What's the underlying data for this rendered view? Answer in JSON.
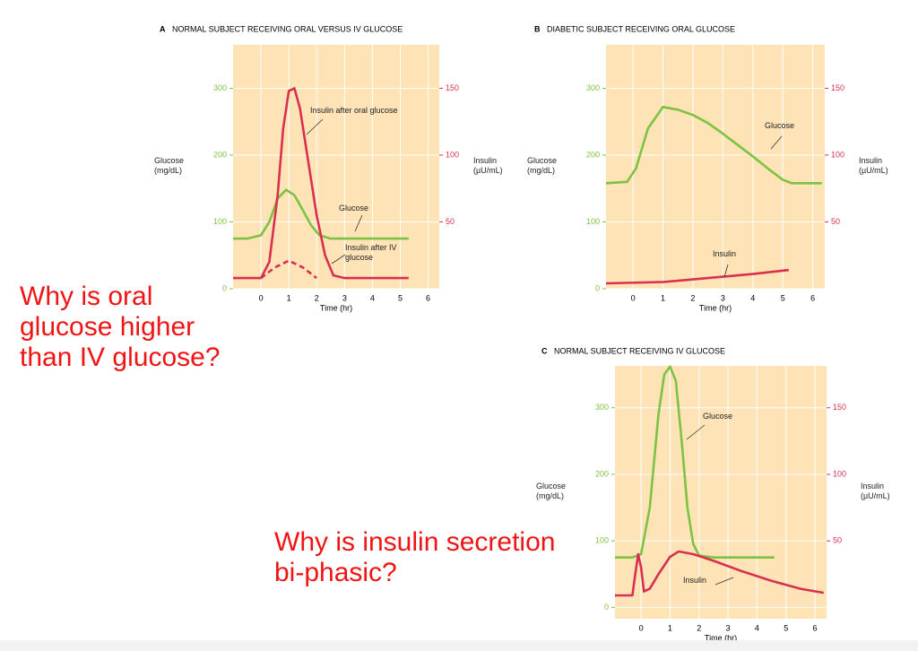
{
  "chart_data": [
    {
      "type": "line",
      "label": "A",
      "title": "NORMAL SUBJECT RECEIVING ORAL VERSUS IV GLUCOSE",
      "xlabel": "Time (hr)",
      "ylabel": "Glucose (mg/dL)",
      "y2label": "Insulin (µU/mL)",
      "xlim": [
        -1,
        6.4
      ],
      "xticks": [
        0,
        1,
        2,
        3,
        4,
        5,
        6
      ],
      "ylim": [
        0,
        365
      ],
      "yticks": [
        0,
        100,
        200,
        300
      ],
      "y2lim": [
        0,
        182.5
      ],
      "y2ticks": [
        50,
        100,
        150
      ],
      "grid": true,
      "series": [
        {
          "name": "Glucose",
          "color": "#7dc242",
          "x": [
            -1,
            -0.5,
            0,
            0.3,
            0.6,
            0.9,
            1.2,
            1.5,
            1.8,
            2.1,
            2.5,
            3,
            4,
            5.3
          ],
          "values": [
            75,
            75,
            80,
            100,
            135,
            148,
            140,
            118,
            95,
            80,
            75,
            75,
            75,
            75
          ]
        },
        {
          "name": "Insulin after oral glucose",
          "color": "#d9304f",
          "axis": "y2",
          "x": [
            -1,
            0,
            0.3,
            0.6,
            0.8,
            1.0,
            1.2,
            1.4,
            1.7,
            2,
            2.3,
            2.6,
            3,
            4,
            5.3
          ],
          "values": [
            8,
            8,
            20,
            70,
            120,
            148,
            150,
            135,
            95,
            55,
            25,
            10,
            8,
            8,
            8
          ]
        },
        {
          "name": "Insulin after IV glucose",
          "color": "#d9304f",
          "axis": "y2",
          "dashed": true,
          "x": [
            0,
            0.5,
            1,
            1.5,
            2
          ],
          "values": [
            8,
            16,
            21,
            16,
            8
          ]
        }
      ]
    },
    {
      "type": "line",
      "label": "B",
      "title": "DIABETIC SUBJECT RECEIVING ORAL GLUCOSE",
      "xlabel": "Time (hr)",
      "ylabel": "Glucose (mg/dL)",
      "y2label": "Insulin (µU/mL)",
      "xlim": [
        -0.9,
        6.4
      ],
      "xticks": [
        0,
        1,
        2,
        3,
        4,
        5,
        6
      ],
      "ylim": [
        0,
        365
      ],
      "yticks": [
        0,
        100,
        200,
        300
      ],
      "y2lim": [
        0,
        182.5
      ],
      "y2ticks": [
        50,
        100,
        150
      ],
      "grid": true,
      "series": [
        {
          "name": "Glucose",
          "color": "#7dc242",
          "x": [
            -0.9,
            -0.2,
            0.1,
            0.5,
            1,
            1.5,
            2,
            2.5,
            3,
            3.5,
            4,
            4.5,
            5,
            5.3,
            6.3
          ],
          "values": [
            158,
            160,
            180,
            240,
            272,
            268,
            260,
            248,
            232,
            215,
            198,
            180,
            163,
            158,
            158
          ]
        },
        {
          "name": "Insulin",
          "color": "#d9304f",
          "axis": "y2",
          "x": [
            -0.9,
            1,
            2,
            3,
            4,
            5.2
          ],
          "values": [
            4,
            5,
            7,
            9,
            11,
            14
          ]
        }
      ]
    },
    {
      "type": "line",
      "label": "C",
      "title": "NORMAL SUBJECT RECEIVING IV GLUCOSE",
      "xlabel": "Time (hr)",
      "ylabel": "Glucose (mg/dL)",
      "y2label": "Insulin (µU/mL)",
      "xlim": [
        -0.9,
        6.4
      ],
      "xticks": [
        0,
        1,
        2,
        3,
        4,
        5,
        6
      ],
      "ylim": [
        -17,
        363
      ],
      "yticks": [
        0,
        100,
        200,
        300
      ],
      "y2lim": [
        -8.5,
        181.5
      ],
      "y2ticks": [
        50,
        100,
        150
      ],
      "grid": true,
      "series": [
        {
          "name": "Glucose",
          "color": "#7dc242",
          "x": [
            -0.9,
            -0.3,
            0,
            0.3,
            0.6,
            0.8,
            1,
            1.2,
            1.4,
            1.6,
            1.8,
            2,
            2.5,
            3,
            4,
            4.6
          ],
          "values": [
            75,
            75,
            80,
            150,
            290,
            350,
            362,
            340,
            250,
            150,
            95,
            78,
            75,
            75,
            75,
            75
          ]
        },
        {
          "name": "Insulin",
          "color": "#d9304f",
          "axis": "y2",
          "x": [
            -0.9,
            -0.3,
            -0.2,
            -0.1,
            0,
            0.1,
            0.3,
            0.6,
            1,
            1.3,
            1.8,
            2.5,
            3.5,
            4.5,
            5.5,
            6.3
          ],
          "values": [
            9,
            9,
            25,
            40,
            30,
            12,
            14,
            25,
            38,
            42,
            40,
            35,
            27,
            20,
            14,
            11
          ]
        }
      ]
    }
  ],
  "questions": [
    "Why is oral glucose higher than IV glucose?",
    "Why is insulin secretion bi-phasic?"
  ]
}
